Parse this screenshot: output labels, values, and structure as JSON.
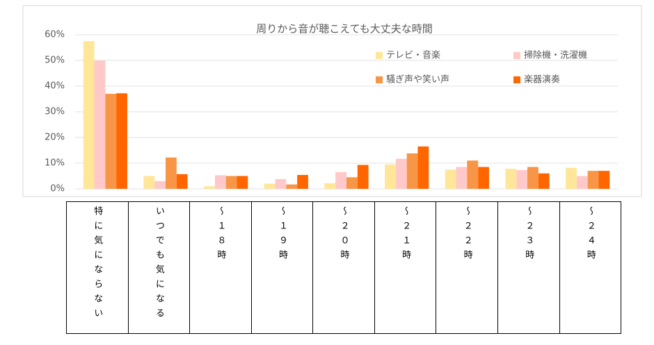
{
  "chart_data": {
    "type": "bar",
    "title": "周りから音が聴こえても大丈夫な時間",
    "categories": [
      "特に気にならない",
      "いつでも気になる",
      "〜１８時",
      "〜１９時",
      "〜２０時",
      "〜２１時",
      "〜２２時",
      "〜２３時",
      "〜２４時"
    ],
    "series": [
      {
        "name": "テレビ・音楽",
        "color": "#ffe699",
        "values": [
          57.5,
          5,
          1,
          2,
          2.2,
          9.5,
          7.5,
          7.8,
          8.2
        ]
      },
      {
        "name": "掃除機・洗濯機",
        "color": "#ffc9c9",
        "values": [
          50,
          3,
          5.3,
          3.8,
          6.5,
          11.7,
          8.5,
          7.3,
          5
        ]
      },
      {
        "name": "騒ぎ声や笑い声",
        "color": "#f79646",
        "values": [
          37,
          12.2,
          5,
          1.7,
          4.5,
          13.8,
          11,
          8.5,
          7
        ]
      },
      {
        "name": "楽器演奏",
        "color": "#ff6600",
        "values": [
          37.2,
          5.7,
          5,
          5.4,
          9.3,
          16.5,
          8.5,
          6,
          7
        ]
      }
    ],
    "ylim": [
      0,
      60
    ],
    "yticks": [
      {
        "value": 0,
        "label": "0%"
      },
      {
        "value": 10,
        "label": "10%"
      },
      {
        "value": 20,
        "label": "20%"
      },
      {
        "value": 30,
        "label": "30%"
      },
      {
        "value": 40,
        "label": "40%"
      },
      {
        "value": 50,
        "label": "50%"
      },
      {
        "value": 60,
        "label": "60%"
      }
    ],
    "grid": true
  }
}
